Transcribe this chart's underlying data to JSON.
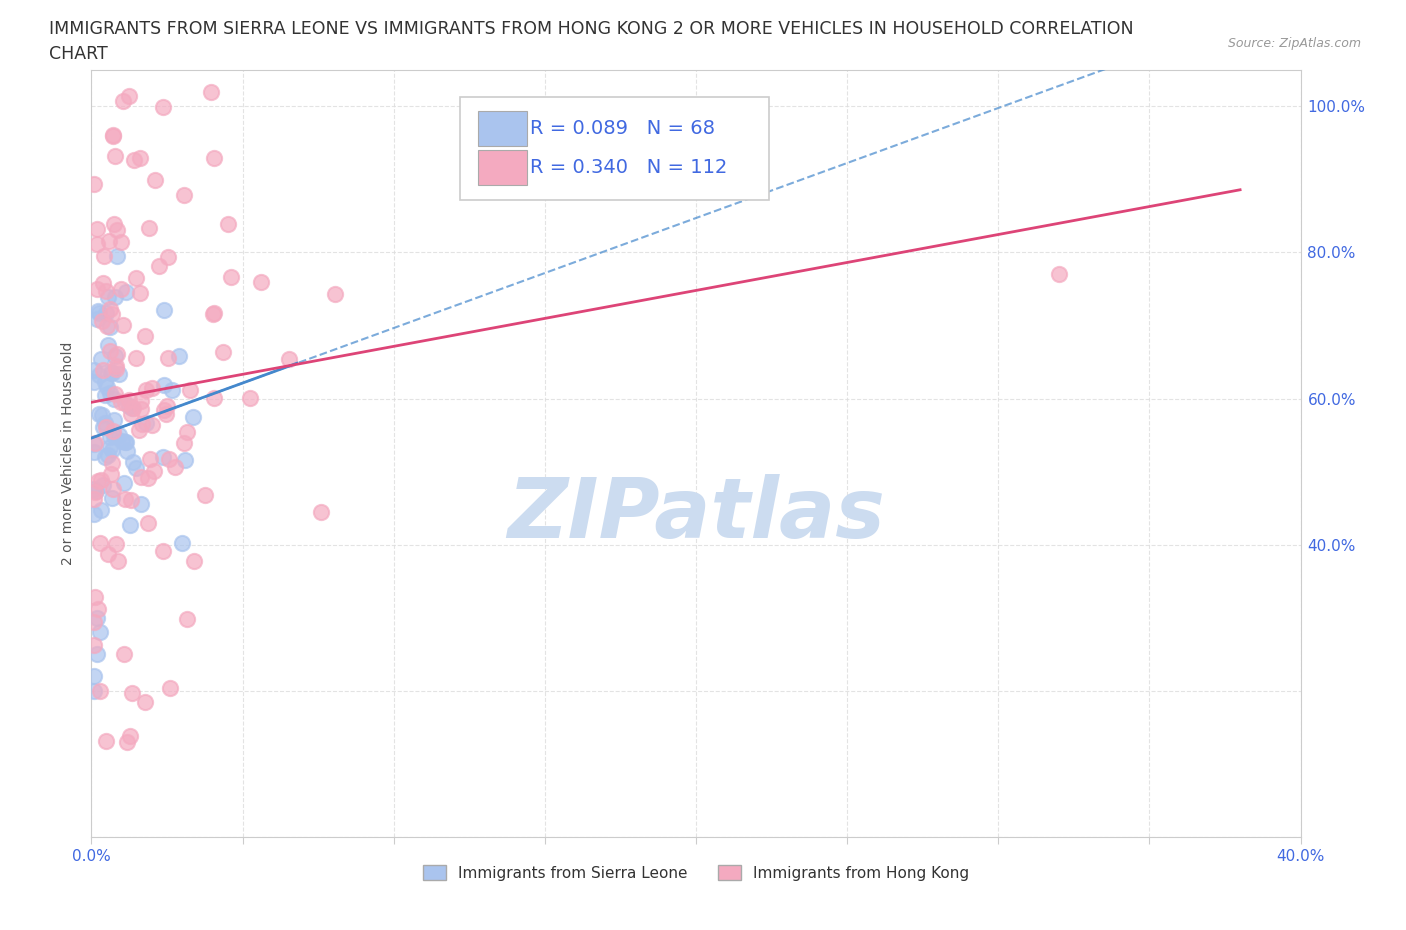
{
  "title_line1": "IMMIGRANTS FROM SIERRA LEONE VS IMMIGRANTS FROM HONG KONG 2 OR MORE VEHICLES IN HOUSEHOLD CORRELATION",
  "title_line2": "CHART",
  "source_text": "Source: ZipAtlas.com",
  "ylabel": "2 or more Vehicles in Household",
  "xlim": [
    0.0,
    0.4
  ],
  "ylim": [
    0.0,
    1.05
  ],
  "xtick_positions": [
    0.0,
    0.05,
    0.1,
    0.15,
    0.2,
    0.25,
    0.3,
    0.35,
    0.4
  ],
  "xticklabels": [
    "0.0%",
    "",
    "",
    "",
    "",
    "",
    "",
    "",
    "40.0%"
  ],
  "ytick_positions": [
    0.0,
    0.2,
    0.4,
    0.6,
    0.8,
    1.0
  ],
  "yticklabels_right": [
    "",
    "",
    "40.0%",
    "60.0%",
    "80.0%",
    "100.0%"
  ],
  "sierra_leone_R": 0.089,
  "sierra_leone_N": 68,
  "hong_kong_R": 0.34,
  "hong_kong_N": 112,
  "sierra_leone_color": "#aac4ee",
  "hong_kong_color": "#f4aac0",
  "sierra_leone_trend_color": "#4488cc",
  "hong_kong_trend_color": "#dd4477",
  "legend_text_color": "#4169e1",
  "watermark_color": "#ccdcf0",
  "background_color": "#ffffff",
  "grid_color": "#dddddd",
  "axis_color": "#cccccc",
  "title_fontsize": 12.5,
  "label_fontsize": 10,
  "tick_fontsize": 11,
  "legend_fontsize": 14
}
